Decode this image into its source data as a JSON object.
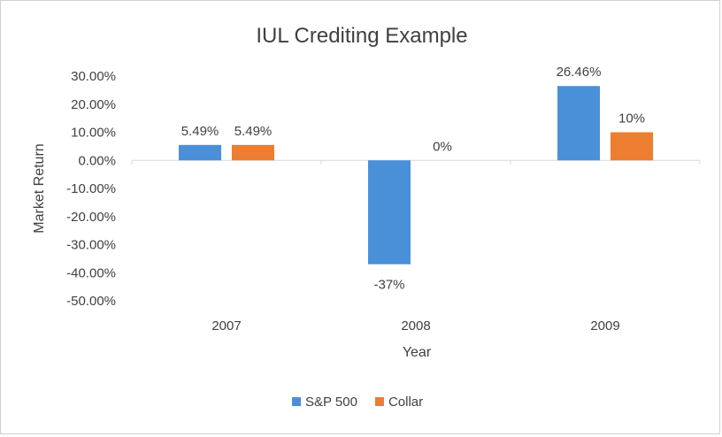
{
  "chart_data": {
    "type": "bar",
    "title": "IUL Crediting Example",
    "xlabel": "Year",
    "ylabel": "Market Return",
    "categories": [
      "2007",
      "2008",
      "2009"
    ],
    "series": [
      {
        "name": "S&P 500",
        "color": "#4A90D9",
        "values": [
          5.49,
          -37,
          26.46
        ],
        "labels": [
          "5.49%",
          "-37%",
          "26.46%"
        ]
      },
      {
        "name": "Collar",
        "color": "#ED7D31",
        "values": [
          5.49,
          0,
          10
        ],
        "labels": [
          "5.49%",
          "0%",
          "10%"
        ]
      }
    ],
    "ylim": [
      -50,
      30
    ],
    "yticks": [
      30,
      20,
      10,
      0,
      -10,
      -20,
      -30,
      -40,
      -50
    ],
    "ytick_labels": [
      "30.00%",
      "20.00%",
      "10.00%",
      "0.00%",
      "-10.00%",
      "-20.00%",
      "-30.00%",
      "-40.00%",
      "-50.00%"
    ],
    "grid": false,
    "legend_position": "bottom"
  }
}
